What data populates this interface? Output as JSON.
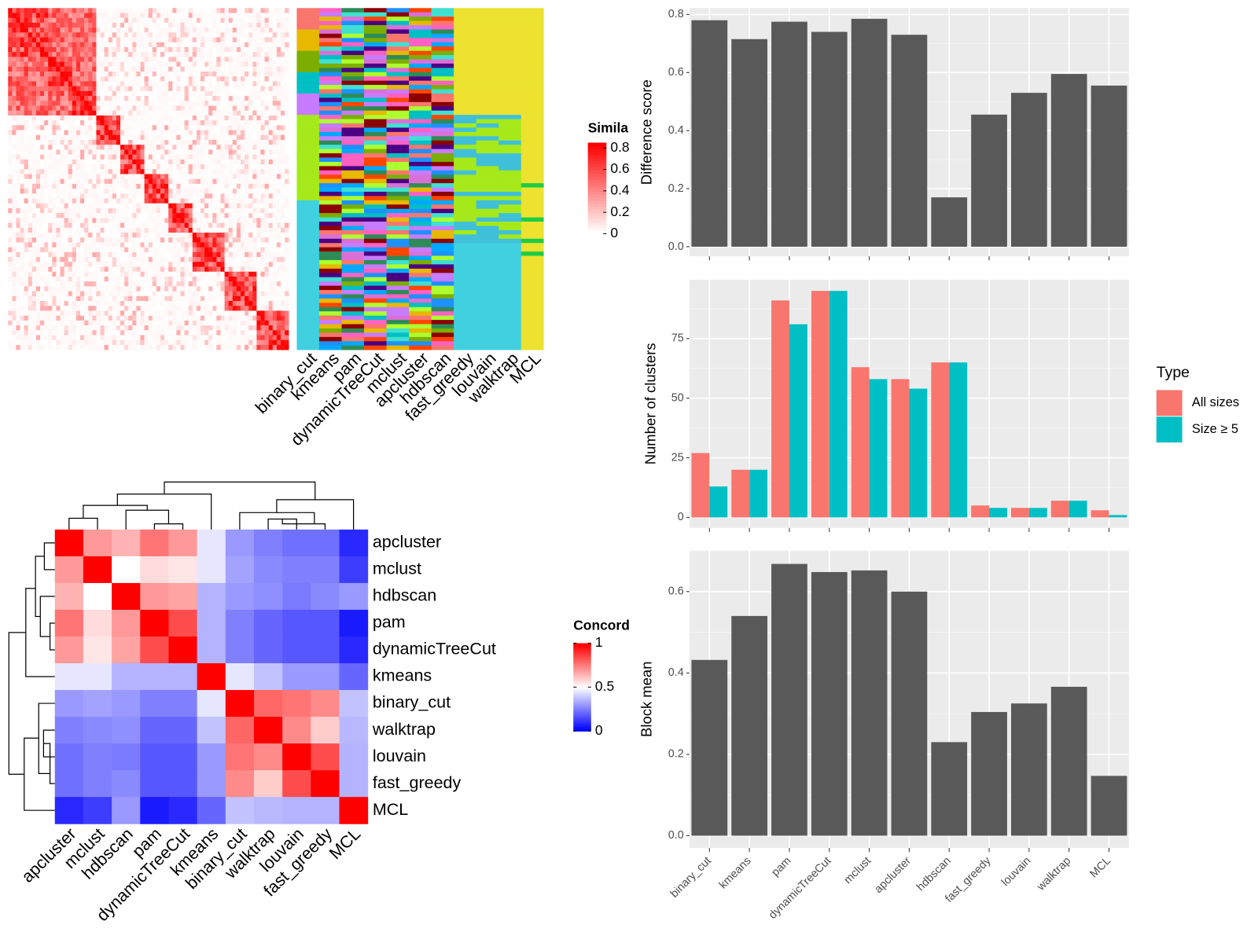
{
  "chart_data": [
    {
      "type": "bar",
      "ylabel": "Difference score",
      "categories": [
        "binary_cut",
        "kmeans",
        "pam",
        "dynamicTreeCut",
        "mclust",
        "apcluster",
        "hdbscan",
        "fast_greedy",
        "louvain",
        "walktrap",
        "MCL"
      ],
      "values": [
        0.78,
        0.715,
        0.775,
        0.74,
        0.785,
        0.73,
        0.17,
        0.455,
        0.53,
        0.595,
        0.555
      ],
      "color": "#595959",
      "ylim": [
        -0.033,
        0.822
      ],
      "yticks": [
        {
          "value": 0,
          "label": "0.0"
        },
        0.2,
        0.4,
        0.6,
        0.8
      ],
      "grid": true
    },
    {
      "type": "grouped_bar",
      "ylabel": "Number of clusters",
      "legend_title": "Type",
      "legend": "right",
      "categories": [
        "binary_cut",
        "kmeans",
        "pam",
        "dynamicTreeCut",
        "mclust",
        "apcluster",
        "hdbscan",
        "fast_greedy",
        "louvain",
        "walktrap",
        "MCL"
      ],
      "series": [
        {
          "name": "All sizes",
          "color": "#f8766d",
          "values": [
            27,
            20,
            91,
            95,
            63,
            58,
            65,
            5,
            4,
            7,
            3
          ]
        },
        {
          "name": "Size ≥ 5",
          "color": "#00bfc4",
          "values": [
            13,
            20,
            81,
            95,
            58,
            54,
            65,
            4,
            4,
            7,
            1
          ]
        }
      ],
      "ylim": [
        -4.4,
        99.7
      ],
      "yticks": [
        0,
        25,
        50,
        75
      ],
      "grid": true
    },
    {
      "type": "bar",
      "ylabel": "Block mean",
      "categories": [
        "binary_cut",
        "kmeans",
        "pam",
        "dynamicTreeCut",
        "mclust",
        "apcluster",
        "hdbscan",
        "fast_greedy",
        "louvain",
        "walktrap",
        "MCL"
      ],
      "values": [
        0.432,
        0.54,
        0.668,
        0.648,
        0.652,
        0.6,
        0.23,
        0.304,
        0.325,
        0.366,
        0.147
      ],
      "color": "#595959",
      "ylim": [
        -0.03,
        0.701
      ],
      "yticks": [
        {
          "value": 0,
          "label": "0.0"
        },
        0.2,
        0.4,
        0.6
      ],
      "grid": true
    },
    {
      "type": "heatmap",
      "legend_title": "Concord",
      "categories": [
        "apcluster",
        "mclust",
        "hdbscan",
        "pam",
        "dynamicTreeCut",
        "kmeans",
        "binary_cut",
        "walktrap",
        "louvain",
        "fast_greedy",
        "MCL"
      ],
      "values": [
        [
          1,
          0.7,
          0.65,
          0.77,
          0.7,
          0.45,
          0.3,
          0.25,
          0.22,
          0.22,
          0.08
        ],
        [
          0.7,
          1,
          0.5,
          0.57,
          0.55,
          0.45,
          0.32,
          0.27,
          0.25,
          0.25,
          0.12
        ],
        [
          0.65,
          0.5,
          1,
          0.7,
          0.68,
          0.35,
          0.3,
          0.28,
          0.24,
          0.27,
          0.3
        ],
        [
          0.77,
          0.57,
          0.7,
          1,
          0.85,
          0.35,
          0.25,
          0.2,
          0.17,
          0.17,
          0.05
        ],
        [
          0.7,
          0.55,
          0.68,
          0.85,
          1,
          0.35,
          0.25,
          0.2,
          0.17,
          0.17,
          0.08
        ],
        [
          0.45,
          0.45,
          0.35,
          0.35,
          0.35,
          1,
          0.45,
          0.38,
          0.3,
          0.3,
          0.2
        ],
        [
          0.3,
          0.32,
          0.3,
          0.25,
          0.25,
          0.45,
          1,
          0.8,
          0.77,
          0.73,
          0.38
        ],
        [
          0.25,
          0.27,
          0.28,
          0.2,
          0.2,
          0.38,
          0.8,
          1,
          0.73,
          0.6,
          0.36
        ],
        [
          0.22,
          0.25,
          0.24,
          0.17,
          0.17,
          0.3,
          0.77,
          0.73,
          1,
          0.85,
          0.35
        ],
        [
          0.22,
          0.25,
          0.27,
          0.17,
          0.17,
          0.3,
          0.73,
          0.6,
          0.85,
          1,
          0.35
        ],
        [
          0.08,
          0.12,
          0.3,
          0.05,
          0.08,
          0.2,
          0.38,
          0.36,
          0.35,
          0.35,
          1
        ]
      ],
      "colors": [
        "#0000ff",
        "#ffffff",
        "#ff0000"
      ],
      "zlim": [
        0,
        1
      ],
      "zticks": [
        0,
        0.5,
        1
      ]
    },
    {
      "type": "similarity_heatmap",
      "legend_title": "Simila",
      "categories": [
        "binary_cut",
        "kmeans",
        "pam",
        "dynamicTreeCut",
        "mclust",
        "apcluster",
        "hdbscan",
        "fast_greedy",
        "louvain",
        "walktrap",
        "MCL"
      ],
      "colors": [
        "#ffffff",
        "#ff0000"
      ],
      "zlim": [
        0,
        0.85
      ],
      "zticks": [
        0,
        0.2,
        0.4,
        0.6,
        0.8
      ]
    }
  ]
}
